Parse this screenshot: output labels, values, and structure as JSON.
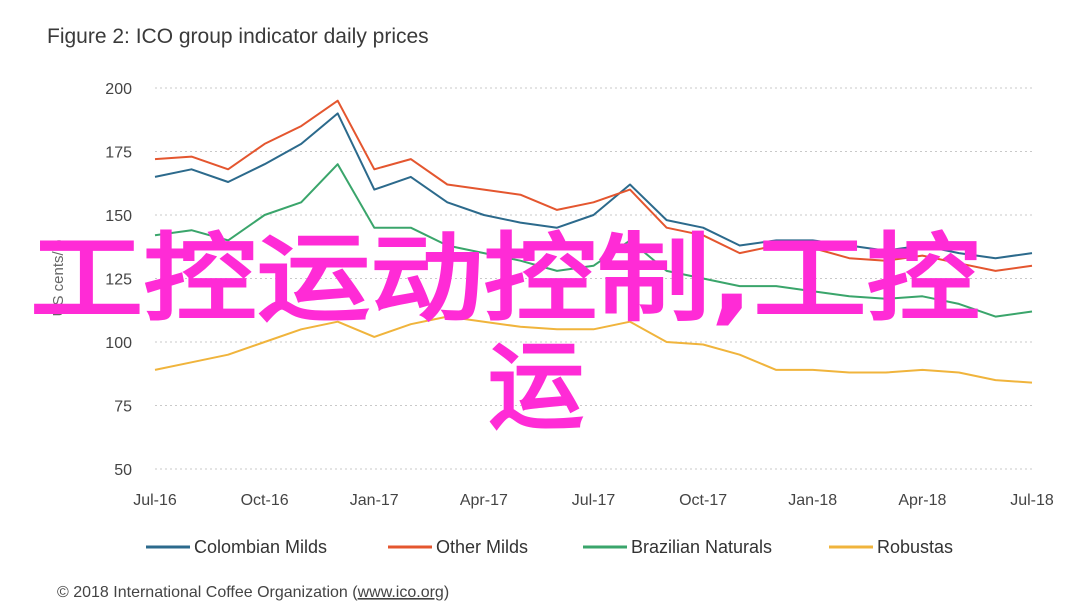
{
  "figure_title": "Figure 2: ICO group indicator daily prices",
  "source_text": "© 2018 International Coffee Organization (",
  "source_link": "www.ico.org",
  "source_end": ")",
  "overlay_text_line1": "工控运动控制,工控",
  "overlay_text_line2": "运",
  "colors": {
    "colombian": "#2c6a8c",
    "other": "#e4562f",
    "brazilian": "#3aa56b",
    "robustas": "#f0b43c",
    "overlay": "#ff2bd6"
  },
  "chart_data": {
    "type": "line",
    "title": "Figure 2: ICO group indicator daily prices",
    "ylabel": "US cents/lb",
    "ylim": [
      50,
      200
    ],
    "yticks": [
      50,
      75,
      100,
      125,
      150,
      175,
      200
    ],
    "x_ticks": [
      "Jul-16",
      "Oct-16",
      "Jan-17",
      "Apr-17",
      "Jul-17",
      "Oct-17",
      "Jan-18",
      "Apr-18",
      "Jul-18"
    ],
    "x": [
      "Jul-16",
      "Aug-16",
      "Sep-16",
      "Oct-16",
      "Nov-16",
      "Dec-16",
      "Jan-17",
      "Feb-17",
      "Mar-17",
      "Apr-17",
      "May-17",
      "Jun-17",
      "Jul-17",
      "Aug-17",
      "Sep-17",
      "Oct-17",
      "Nov-17",
      "Dec-17",
      "Jan-18",
      "Feb-18",
      "Mar-18",
      "Apr-18",
      "May-18",
      "Jun-18",
      "Jul-18"
    ],
    "grid": true,
    "legend_position": "bottom",
    "series": [
      {
        "name": "Colombian Milds",
        "color": "#2c6a8c",
        "values": [
          165,
          168,
          163,
          170,
          178,
          190,
          160,
          165,
          155,
          150,
          147,
          145,
          150,
          162,
          148,
          145,
          138,
          140,
          140,
          138,
          136,
          138,
          135,
          133,
          135
        ]
      },
      {
        "name": "Other Milds",
        "color": "#e4562f",
        "values": [
          172,
          173,
          168,
          178,
          185,
          195,
          168,
          172,
          162,
          160,
          158,
          152,
          155,
          160,
          145,
          142,
          135,
          138,
          137,
          133,
          132,
          134,
          131,
          128,
          130
        ]
      },
      {
        "name": "Brazilian Naturals",
        "color": "#3aa56b",
        "values": [
          142,
          144,
          140,
          150,
          155,
          170,
          145,
          145,
          138,
          135,
          132,
          128,
          130,
          140,
          128,
          125,
          122,
          122,
          120,
          118,
          117,
          118,
          115,
          110,
          112
        ]
      },
      {
        "name": "Robustas",
        "color": "#f0b43c",
        "values": [
          89,
          92,
          95,
          100,
          105,
          108,
          102,
          107,
          110,
          108,
          106,
          105,
          105,
          108,
          100,
          99,
          95,
          89,
          89,
          88,
          88,
          89,
          88,
          85,
          84
        ]
      }
    ]
  }
}
